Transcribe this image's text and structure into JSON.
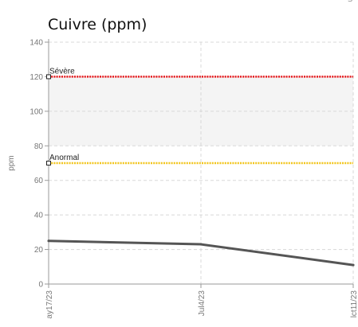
{
  "header": {
    "clipped_left": "M",
    "clipped_right": "S"
  },
  "chart_data": {
    "type": "line",
    "title": "Cuivre (ppm)",
    "ylabel": "ppm",
    "xlabel": "",
    "ylim": [
      0,
      140
    ],
    "yticks": [
      0,
      20,
      40,
      60,
      80,
      100,
      120,
      140
    ],
    "grid": true,
    "categories": [
      "ay17/23",
      "Jul4/23",
      "lct11/23"
    ],
    "series": [
      {
        "values": [
          25,
          23,
          11
        ],
        "color": "#555555"
      }
    ],
    "thresholds": [
      {
        "name": "Sévère",
        "value": 120,
        "color": "#e8191d"
      },
      {
        "name": "Anormal",
        "value": 70,
        "color": "#f2c51c"
      }
    ],
    "bands": [
      {
        "from": 80,
        "to": 100
      },
      {
        "from": 100,
        "to": 120
      }
    ]
  }
}
